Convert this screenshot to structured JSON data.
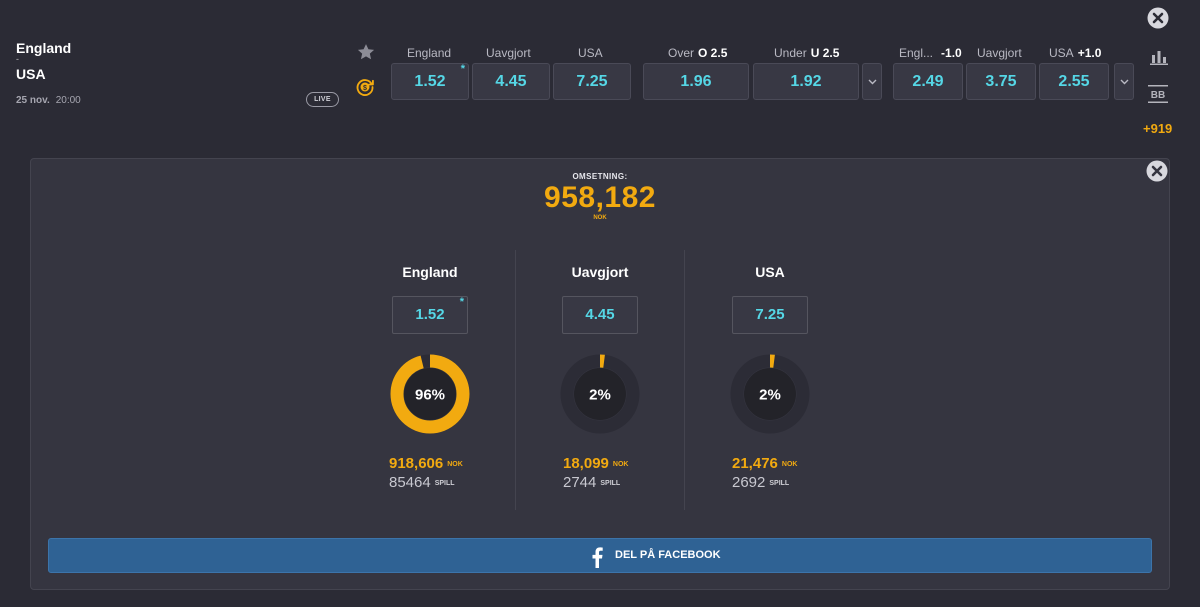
{
  "match": {
    "home": "England",
    "separator": "-",
    "away": "USA",
    "date": "25 nov.",
    "time": "20:00",
    "live_badge": "LIVE"
  },
  "markets": {
    "h1": {
      "labels": [
        "England",
        "Uavgjort",
        "USA"
      ],
      "odds": [
        "1.52",
        "4.45",
        "7.25"
      ],
      "favorite_marker": "*"
    },
    "ou": {
      "labels": [
        {
          "text": "Over",
          "line": "O 2.5"
        },
        {
          "text": "Under",
          "line": "U 2.5"
        }
      ],
      "odds": [
        "1.96",
        "1.92"
      ]
    },
    "handicap": {
      "labels": [
        {
          "text": "Engl...",
          "line": "-1.0"
        },
        {
          "text": "Uavgjort",
          "line": ""
        },
        {
          "text": "USA",
          "line": "+1.0"
        }
      ],
      "odds": [
        "2.49",
        "3.75",
        "2.55"
      ]
    }
  },
  "side_actions": {
    "more_markets": "+919",
    "bb_label": "BB"
  },
  "panel": {
    "turnover_label": "OMSETNING:",
    "turnover_value": "958,182",
    "turnover_currency": "NOK",
    "columns": [
      {
        "title": "England",
        "odd": "1.52",
        "star": "*",
        "percent_label": "96%",
        "percent": 0.96,
        "amount": "918,606",
        "amount_unit": "NOK",
        "bets": "85464",
        "bets_unit": "SPILL"
      },
      {
        "title": "Uavgjort",
        "odd": "4.45",
        "star": "",
        "percent_label": "2%",
        "percent": 0.02,
        "amount": "18,099",
        "amount_unit": "NOK",
        "bets": "2744",
        "bets_unit": "SPILL"
      },
      {
        "title": "USA",
        "odd": "7.25",
        "star": "",
        "percent_label": "2%",
        "percent": 0.02,
        "amount": "21,476",
        "amount_unit": "NOK",
        "bets": "2692",
        "bets_unit": "SPILL"
      }
    ],
    "share_label": "DEL PÅ FACEBOOK"
  },
  "colors": {
    "background": "#2b2b35",
    "panel": "#353540",
    "odds_text": "#55d7e6",
    "accent_gold": "#f2aa10",
    "facebook": "#2f6294",
    "donut_track": "#2c2c36",
    "donut_center": "#232329"
  }
}
